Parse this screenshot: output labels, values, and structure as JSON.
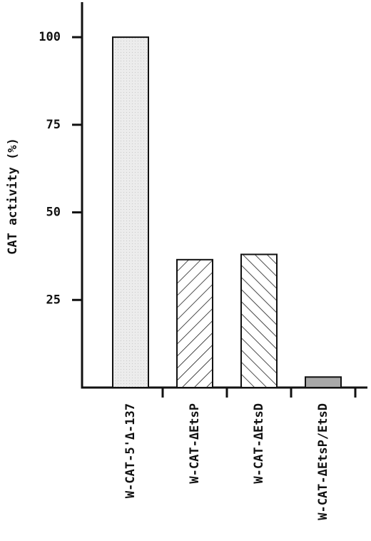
{
  "chart_data": {
    "type": "bar",
    "y_label": "CAT activity (%)",
    "categories": [
      "W-CAT-5'Δ-137",
      "W-CAT-ΔEtsP",
      "W-CAT-ΔEtsD",
      "W-CAT-ΔEtsP/EtsD"
    ],
    "values": [
      100,
      36.5,
      38,
      3
    ],
    "ylim": [
      0,
      110
    ],
    "yticks": [
      25,
      50,
      75,
      100
    ]
  }
}
